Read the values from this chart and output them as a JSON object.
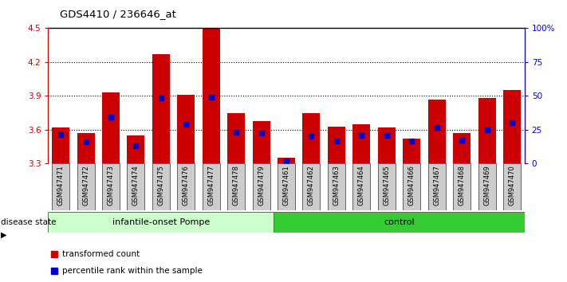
{
  "title": "GDS4410 / 236646_at",
  "samples": [
    "GSM947471",
    "GSM947472",
    "GSM947473",
    "GSM947474",
    "GSM947475",
    "GSM947476",
    "GSM947477",
    "GSM947478",
    "GSM947479",
    "GSM947461",
    "GSM947462",
    "GSM947463",
    "GSM947464",
    "GSM947465",
    "GSM947466",
    "GSM947467",
    "GSM947468",
    "GSM947469",
    "GSM947470"
  ],
  "red_values": [
    3.62,
    3.57,
    3.93,
    3.55,
    4.27,
    3.91,
    4.5,
    3.75,
    3.68,
    3.35,
    3.75,
    3.63,
    3.65,
    3.62,
    3.52,
    3.87,
    3.57,
    3.88,
    3.95
  ],
  "blue_values": [
    3.56,
    3.49,
    3.71,
    3.46,
    3.88,
    3.65,
    3.89,
    3.58,
    3.57,
    3.32,
    3.54,
    3.5,
    3.55,
    3.55,
    3.5,
    3.62,
    3.51,
    3.6,
    3.66
  ],
  "baseline": 3.3,
  "ylim_left": [
    3.3,
    4.5
  ],
  "yticks_left": [
    3.3,
    3.6,
    3.9,
    4.2,
    4.5
  ],
  "yticks_right": [
    0,
    25,
    50,
    75,
    100
  ],
  "grid_lines": [
    3.6,
    3.9,
    4.2
  ],
  "group1_label": "infantile-onset Pompe",
  "group2_label": "control",
  "group1_count": 9,
  "group2_count": 10,
  "disease_state_label": "disease state",
  "legend_red": "transformed count",
  "legend_blue": "percentile rank within the sample",
  "bar_color": "#cc0000",
  "blue_color": "#0000cc",
  "group1_bg": "#ccffcc",
  "group2_bg": "#33cc33",
  "tick_bg": "#cccccc",
  "bar_width": 0.7
}
